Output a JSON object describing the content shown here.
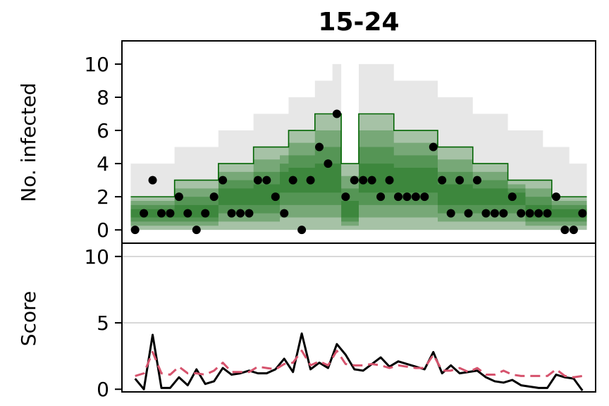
{
  "title": "15-24",
  "chart_data": [
    {
      "panel": "top",
      "type": "area",
      "ylabel": "No. infected",
      "xlabel": "",
      "yticks": [
        0,
        2,
        4,
        6,
        8,
        10
      ],
      "ylim": [
        -0.8,
        11.4
      ],
      "xlim": [
        -1.5,
        52.5
      ],
      "grid": false,
      "colors": {
        "band": "#006400",
        "outer": "#d3d3d3",
        "points": "#000000"
      },
      "x": [
        0,
        1,
        2,
        3,
        4,
        5,
        6,
        7,
        8,
        9,
        10,
        11,
        12,
        13,
        14,
        15,
        16,
        17,
        18,
        19,
        20,
        21,
        22,
        23,
        24,
        25,
        26,
        27,
        28,
        29,
        30,
        31,
        32,
        33,
        34,
        35,
        36,
        37,
        38,
        39,
        40,
        41,
        42,
        43,
        44,
        45,
        46,
        47,
        48,
        49,
        50,
        51
      ],
      "observed": [
        0,
        1,
        3,
        1,
        1,
        2,
        1,
        0,
        1,
        2,
        3,
        1,
        1,
        1,
        3,
        3,
        2,
        1,
        3,
        0,
        3,
        5,
        4,
        7,
        2,
        3,
        3,
        3,
        2,
        3,
        2,
        2,
        2,
        2,
        5,
        3,
        1,
        3,
        1,
        3,
        1,
        1,
        1,
        2,
        1,
        1,
        1,
        1,
        2,
        0,
        0,
        1
      ],
      "band_upper": [
        2,
        2,
        2,
        2,
        2,
        3,
        3,
        3,
        3,
        3,
        4,
        4,
        4,
        4,
        5,
        5,
        5,
        5,
        6,
        6,
        6,
        7,
        7,
        7,
        4,
        4,
        7,
        7,
        7,
        7,
        6,
        6,
        6,
        6,
        6,
        5,
        5,
        5,
        5,
        4,
        4,
        4,
        4,
        3,
        3,
        3,
        3,
        3,
        2,
        2,
        2,
        2
      ],
      "band_lower": [
        0,
        0,
        0,
        0,
        0,
        0,
        0,
        0,
        0,
        0,
        0,
        0,
        0,
        0,
        0,
        0,
        0,
        0,
        0,
        0,
        0,
        0,
        0,
        0,
        0,
        0,
        0,
        0,
        0,
        0,
        0,
        0,
        0,
        0,
        0,
        0,
        0,
        0,
        0,
        0,
        0,
        0,
        0,
        0,
        0,
        0,
        0,
        0,
        0,
        0,
        0,
        0
      ],
      "outer_upper": [
        4,
        4,
        4,
        4,
        4,
        5,
        5,
        5,
        5,
        5,
        6,
        6,
        6,
        6,
        7,
        7,
        7,
        7,
        8,
        8,
        8,
        9,
        9,
        10,
        4,
        4,
        10,
        10,
        10,
        10,
        9,
        9,
        9,
        9,
        9,
        8,
        8,
        8,
        8,
        7,
        7,
        7,
        7,
        6,
        6,
        6,
        6,
        5,
        5,
        5,
        4,
        4
      ],
      "median": [
        1,
        1,
        1,
        1,
        1,
        1,
        1,
        1,
        1,
        1,
        2,
        2,
        2,
        2,
        2,
        2,
        2,
        3,
        3,
        3,
        3,
        3,
        3,
        3,
        1,
        1,
        3,
        3,
        3,
        3,
        3,
        3,
        3,
        3,
        3,
        2,
        2,
        2,
        2,
        2,
        2,
        2,
        2,
        2,
        2,
        1,
        1,
        1,
        1,
        1,
        1,
        1
      ]
    },
    {
      "panel": "bottom",
      "type": "line",
      "ylabel": "Score",
      "xlabel": "",
      "yticks": [
        0,
        5,
        10
      ],
      "ylim": [
        -0.2,
        11
      ],
      "grid": true,
      "series": [
        {
          "name": "",
          "color": "#000000",
          "dash": "solid",
          "values": [
            0.8,
            0,
            4.1,
            0.1,
            0.1,
            0.9,
            0.3,
            1.5,
            0.4,
            0.6,
            1.6,
            1.1,
            1.2,
            1.4,
            1.2,
            1.2,
            1.5,
            2.3,
            1.3,
            4.2,
            1.5,
            2.0,
            1.6,
            3.4,
            2.6,
            1.5,
            1.4,
            1.9,
            2.4,
            1.7,
            2.1,
            1.9,
            1.7,
            1.5,
            2.8,
            1.2,
            1.8,
            1.2,
            1.3,
            1.4,
            0.9,
            0.6,
            0.5,
            0.7,
            0.3,
            0.2,
            0.1,
            0.1,
            1.1,
            0.9,
            0.8,
            -0.1
          ]
        },
        {
          "name": "",
          "color": "#d6536d",
          "dash": "dashed",
          "values": [
            1.0,
            1.2,
            2.8,
            1.2,
            1.1,
            1.7,
            1.2,
            1.2,
            1.1,
            1.4,
            2.0,
            1.3,
            1.3,
            1.3,
            1.7,
            1.6,
            1.5,
            1.9,
            2.0,
            2.9,
            1.8,
            2.1,
            1.8,
            2.9,
            1.9,
            1.8,
            1.8,
            1.9,
            1.8,
            1.6,
            1.8,
            1.7,
            1.6,
            1.6,
            2.6,
            1.4,
            1.4,
            1.6,
            1.3,
            1.6,
            1.1,
            1.1,
            1.4,
            1.1,
            1.0,
            1.0,
            1.0,
            1.0,
            1.5,
            1.0,
            0.9,
            1.0
          ]
        }
      ]
    }
  ]
}
